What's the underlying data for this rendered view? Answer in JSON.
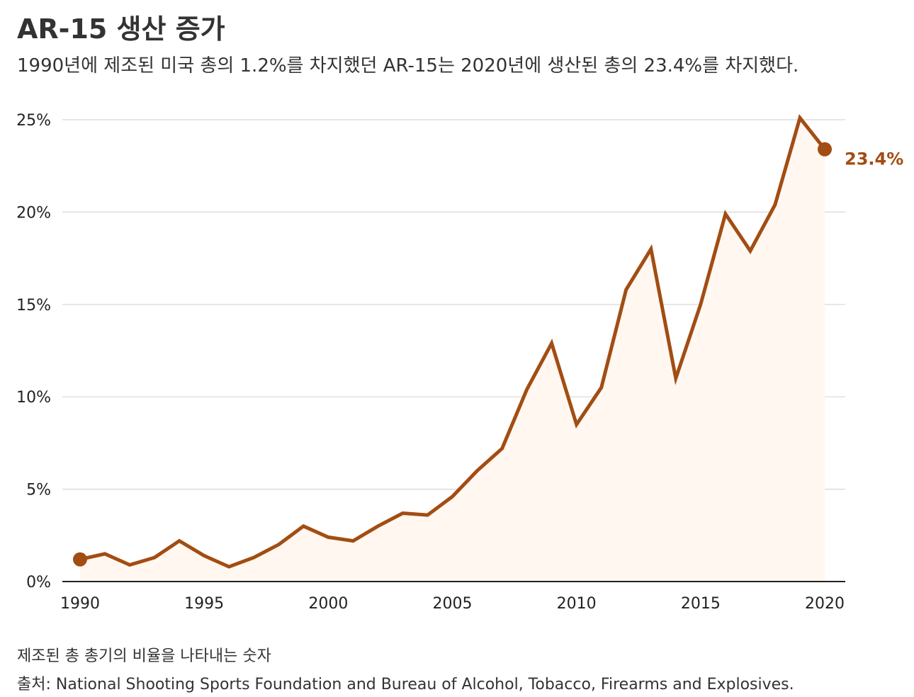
{
  "colors": {
    "line": "#a24d13",
    "area": "#fff7f0",
    "grid": "#d7d7d7",
    "axis": "#222222",
    "text": "#333333"
  },
  "chart_data": {
    "type": "line",
    "title": "AR-15 생산 증가",
    "subtitle": "1990년에 제조된 미국 총의 1.2%를 차지했던 AR-15는 2020년에 생산된 총의 23.4%를 차지했다.",
    "xlabel": "",
    "ylabel": "",
    "x": [
      1990,
      1991,
      1992,
      1993,
      1994,
      1995,
      1996,
      1997,
      1998,
      1999,
      2000,
      2001,
      2002,
      2003,
      2004,
      2005,
      2006,
      2007,
      2008,
      2009,
      2010,
      2011,
      2012,
      2013,
      2014,
      2015,
      2016,
      2017,
      2018,
      2019,
      2020
    ],
    "series": [
      {
        "name": "AR-15",
        "values": [
          1.2,
          1.5,
          0.9,
          1.3,
          2.2,
          1.4,
          0.8,
          1.3,
          2.0,
          3.0,
          2.4,
          2.2,
          3.0,
          3.7,
          3.6,
          4.6,
          6.0,
          7.2,
          10.4,
          12.9,
          8.5,
          10.5,
          15.8,
          18.0,
          11.0,
          15.0,
          19.9,
          17.9,
          20.4,
          25.1,
          23.4
        ]
      }
    ],
    "xlim": [
      1990,
      2020
    ],
    "ylim": [
      0,
      25
    ],
    "x_ticks": [
      1990,
      1995,
      2000,
      2005,
      2010,
      2015,
      2020
    ],
    "x_tick_labels": [
      "1990",
      "1995",
      "2000",
      "2005",
      "2010",
      "2015",
      "2020"
    ],
    "y_ticks": [
      0,
      5,
      10,
      15,
      20,
      25
    ],
    "y_tick_labels": [
      "0%",
      "5%",
      "10%",
      "15%",
      "20%",
      "25%"
    ],
    "end_label": "23.4%",
    "grid": true,
    "legend": "none",
    "note": "제조된 총 총기의 비율을 나타내는 숫자",
    "source": "출처: National Shooting Sports Foundation and Bureau of Alcohol, Tobacco, Firearms and Explosives."
  }
}
